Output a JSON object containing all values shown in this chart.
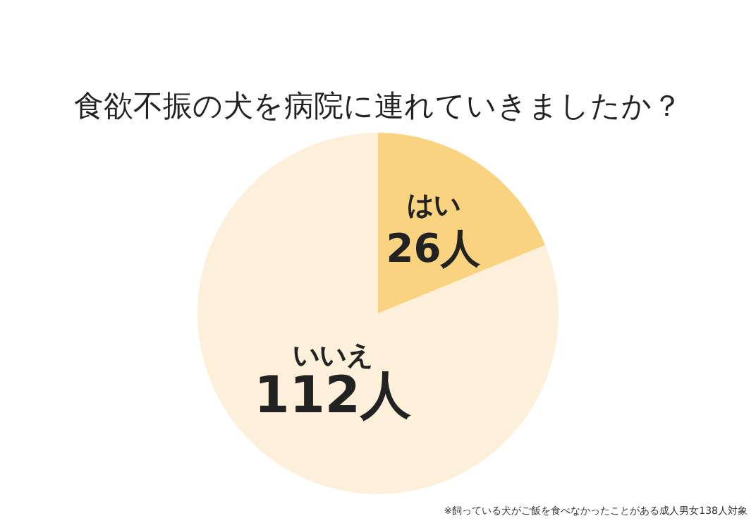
{
  "chart_data": {
    "type": "pie",
    "title": "食欲不振の犬を病院に連れていきましたか？",
    "categories": [
      "はい",
      "いいえ"
    ],
    "values": [
      26,
      112
    ],
    "colors": [
      "#f9d37f",
      "#fdf0da"
    ],
    "value_labels": [
      "26人",
      "112人"
    ],
    "annotations": [
      "※飼っている犬がご飯を食べなかったことがある成人男女138人対象"
    ]
  }
}
